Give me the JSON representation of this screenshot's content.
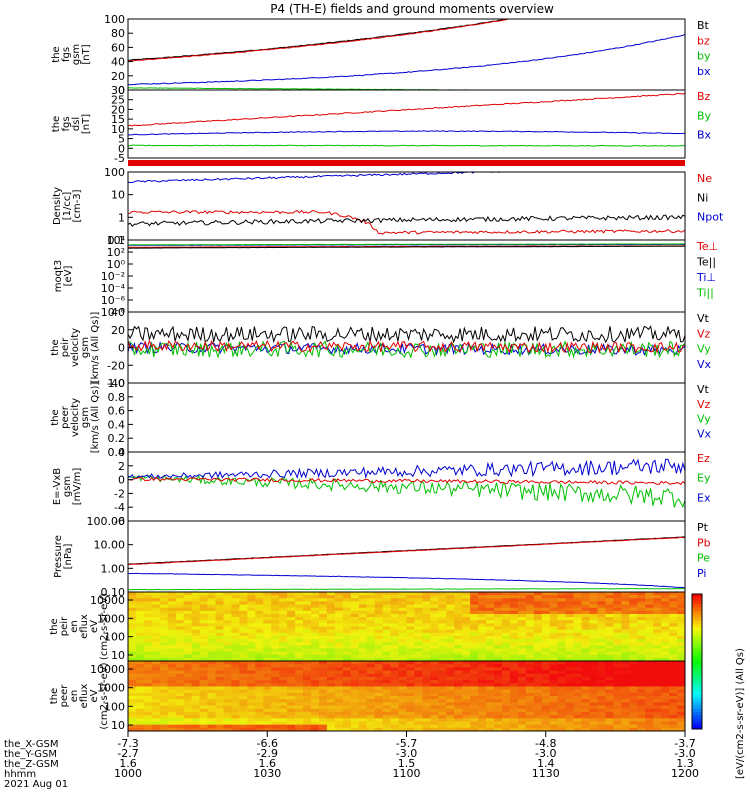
{
  "title": "P4 (TH-E) fields and ground moments overview",
  "colors": {
    "black": "#000000",
    "red": "#e00000",
    "green": "#00c000",
    "blue": "#0000d0"
  },
  "footer": {
    "row_labels": [
      "the_X-GSM",
      "the_Y-GSM",
      "the_Z-GSM",
      "hhmm",
      "2021 Aug 01"
    ],
    "ticks": [
      {
        "x": "-7.3",
        "y": "-2.7",
        "z": "1.6",
        "t": "1000"
      },
      {
        "x": "-6.6",
        "y": "-2.9",
        "z": "1.6",
        "t": "1030"
      },
      {
        "x": "-5.7",
        "y": "-3.0",
        "z": "1.5",
        "t": "1100"
      },
      {
        "x": "-4.8",
        "y": "-3.0",
        "z": "1.4",
        "t": "1130"
      },
      {
        "x": "-3.7",
        "y": "-3.0",
        "z": "1.3",
        "t": "1200"
      }
    ]
  },
  "colorbar": {
    "label": "[eV/(cm2-s-sr-eV)] (All Qs)"
  },
  "chart_data": [
    {
      "id": "fgs",
      "type": "line",
      "ylabel": [
        "the",
        "fgs",
        "gsm",
        "[nT]"
      ],
      "ylim": [
        0,
        100
      ],
      "ticks": [
        "0",
        "20",
        "40",
        "60",
        "80",
        "100"
      ],
      "legend": [
        "Bt",
        "bz",
        "by",
        "bx"
      ],
      "series": [
        {
          "name": "Bt",
          "color": "black",
          "kind": "exp",
          "v0": 42,
          "v1": 150,
          "noise": 0.5
        },
        {
          "name": "bz",
          "color": "red",
          "kind": "exp",
          "v0": 41,
          "v1": 150,
          "noise": 0.5
        },
        {
          "name": "by",
          "color": "green",
          "kind": "lin",
          "v0": 3,
          "v1": -2,
          "noise": 0.3
        },
        {
          "name": "bx",
          "color": "blue",
          "kind": "exp",
          "v0": 8,
          "v1": 78,
          "noise": 0.6
        }
      ]
    },
    {
      "id": "fgs_dsl",
      "type": "line",
      "ylabel": [
        "the",
        "fgs",
        "dsl",
        "[nT]"
      ],
      "ylim": [
        -8,
        30
      ],
      "ticks": [
        "-5",
        "0",
        "5",
        "10",
        "15",
        "20",
        "25",
        "30"
      ],
      "legend": [
        "Bz",
        "By",
        "Bx"
      ],
      "series": [
        {
          "name": "Bz",
          "color": "red",
          "kind": "lin",
          "v0": 10,
          "v1": 28,
          "noise": 0.3
        },
        {
          "name": "By",
          "color": "green",
          "kind": "lin",
          "v0": -1,
          "v1": -1.2,
          "noise": 0.2
        },
        {
          "name": "Bx",
          "color": "blue",
          "kind": "hump",
          "v0": 5,
          "v1": 7,
          "noise": 0.2
        }
      ]
    },
    {
      "id": "density",
      "type": "line",
      "log": true,
      "ylabel": [
        "Density",
        "[1/cc]",
        "[cm-3]"
      ],
      "ylim": [
        0.05,
        200
      ],
      "ticks": [
        "0.1",
        "1",
        "10",
        "100"
      ],
      "legend": [
        "Ne",
        "Ni",
        "Npot"
      ],
      "series": [
        {
          "name": "Ne",
          "color": "red",
          "kind": "step",
          "v0": 1.5,
          "v1": 0.1,
          "noise": 0.08
        },
        {
          "name": "Ni",
          "color": "black",
          "kind": "lin",
          "v0": 0.35,
          "v1": 0.8,
          "noise": 0.12
        },
        {
          "name": "Npot",
          "color": "blue",
          "kind": "exp",
          "v0": 60,
          "v1": 400,
          "noise": 0.05
        }
      ]
    },
    {
      "id": "temp",
      "type": "line",
      "log": true,
      "ylabel": [
        "moqt3",
        "[eV]"
      ],
      "ylim": [
        1e-10,
        100000.0
      ],
      "ticks": [
        "10⁻⁸",
        "10⁻⁶",
        "10⁻⁴",
        "10⁻²",
        "10⁰",
        "10²",
        "10⁴"
      ],
      "legend": [
        "Te⊥",
        "Te||",
        "Ti⊥",
        "Ti||"
      ],
      "series": [
        {
          "name": "Te⊥",
          "color": "red",
          "kind": "lin",
          "v0": 3000,
          "v1": 6000,
          "noise": 0.02
        },
        {
          "name": "Te||",
          "color": "black",
          "kind": "lin",
          "v0": 2000,
          "v1": 5000,
          "noise": 0.02
        },
        {
          "name": "Ti⊥",
          "color": "blue",
          "kind": "lin",
          "v0": 8000,
          "v1": 12000,
          "noise": 0.02
        },
        {
          "name": "Ti||",
          "color": "green",
          "kind": "lin",
          "v0": 10000,
          "v1": 15000,
          "noise": 0.02
        }
      ]
    },
    {
      "id": "peir_v",
      "type": "line",
      "ylabel": [
        "the",
        "peir",
        "velocity",
        "gsm",
        "[km/s (All Qs)]"
      ],
      "ylim": [
        -40,
        40
      ],
      "ticks": [
        "-40",
        "-20",
        "0",
        "20",
        "40"
      ],
      "legend": [
        "Vt",
        "Vz",
        "Vy",
        "Vx"
      ],
      "series": [
        {
          "name": "Vt",
          "color": "black",
          "kind": "lin",
          "v0": 15,
          "v1": 15,
          "noise": 9
        },
        {
          "name": "Vx",
          "color": "blue",
          "kind": "lin",
          "v0": 0,
          "v1": -3,
          "noise": 6
        },
        {
          "name": "Vy",
          "color": "green",
          "kind": "lin",
          "v0": -2,
          "v1": -2,
          "noise": 9
        },
        {
          "name": "Vz",
          "color": "red",
          "kind": "lin",
          "v0": 2,
          "v1": 0,
          "noise": 6
        }
      ]
    },
    {
      "id": "peer_v",
      "type": "line",
      "ylabel": [
        "the",
        "peer",
        "velocity",
        "gsm",
        "[km/s (All Qs)]"
      ],
      "ylim": [
        0,
        1
      ],
      "ticks": [
        "0.0",
        "0.2",
        "0.4",
        "0.6",
        "0.8",
        "1.0"
      ],
      "legend": [
        "Vt",
        "Vz",
        "Vy",
        "Vx"
      ],
      "series": []
    },
    {
      "id": "efield",
      "type": "line",
      "ylabel": [
        "E=-VxB",
        "gsm",
        "[mV/m]"
      ],
      "ylim": [
        -6,
        4
      ],
      "ticks": [
        "-6",
        "-4",
        "-2",
        "0",
        "2",
        "4"
      ],
      "legend": [
        "Ez",
        "Ey",
        "Ex"
      ],
      "series": [
        {
          "name": "Ey",
          "color": "green",
          "kind": "lin",
          "v0": 0.3,
          "v1": -2.5,
          "noise": 1.0,
          "grow": true
        },
        {
          "name": "Ex",
          "color": "blue",
          "kind": "lin",
          "v0": 0.4,
          "v1": 2,
          "noise": 0.8,
          "grow": true
        },
        {
          "name": "Ez",
          "color": "red",
          "kind": "lin",
          "v0": 0.1,
          "v1": -0.5,
          "noise": 0.25
        }
      ]
    },
    {
      "id": "pressure",
      "type": "line",
      "log": true,
      "ylabel": [
        "Pressure",
        "[nPa]"
      ],
      "ylim": [
        0.03,
        150
      ],
      "ticks": [
        "0.10",
        "1.00",
        "10.00",
        "100.00"
      ],
      "legend": [
        "Pt",
        "Pb",
        "Pe",
        "Pi"
      ],
      "series": [
        {
          "name": "Pt",
          "color": "black",
          "kind": "exp",
          "v0": 0.85,
          "v1": 22,
          "noise": 0.01
        },
        {
          "name": "Pb",
          "color": "red",
          "kind": "exp",
          "v0": 0.8,
          "v1": 21,
          "noise": 0.01
        },
        {
          "name": "Pi",
          "color": "blue",
          "kind": "lin",
          "v0": 0.28,
          "v1": 0.05,
          "noise": 0.01
        },
        {
          "name": "Pe",
          "color": "green",
          "kind": "lin",
          "v0": 0.04,
          "v1": 0.045,
          "noise": 0.01
        }
      ]
    },
    {
      "id": "peir_en",
      "type": "heatmap",
      "ylabel": [
        "the",
        "peir",
        "en",
        "eflux",
        "eV",
        "(cm2-s-sr-eV)"
      ],
      "ticks": [
        "10",
        "100",
        "1000",
        "10000"
      ]
    },
    {
      "id": "peer_en",
      "type": "heatmap",
      "ylabel": [
        "the",
        "peer",
        "en",
        "eflux",
        "eV",
        "(cm2-s-sr-eV)"
      ],
      "ticks": [
        "10",
        "100",
        "1000",
        "10000"
      ]
    }
  ]
}
